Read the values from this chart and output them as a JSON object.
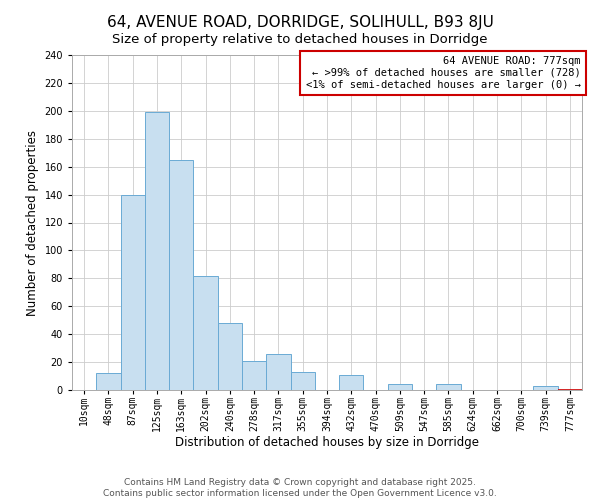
{
  "title": "64, AVENUE ROAD, DORRIDGE, SOLIHULL, B93 8JU",
  "subtitle": "Size of property relative to detached houses in Dorridge",
  "xlabel": "Distribution of detached houses by size in Dorridge",
  "ylabel": "Number of detached properties",
  "bin_labels": [
    "10sqm",
    "48sqm",
    "87sqm",
    "125sqm",
    "163sqm",
    "202sqm",
    "240sqm",
    "278sqm",
    "317sqm",
    "355sqm",
    "394sqm",
    "432sqm",
    "470sqm",
    "509sqm",
    "547sqm",
    "585sqm",
    "624sqm",
    "662sqm",
    "700sqm",
    "739sqm",
    "777sqm"
  ],
  "bar_heights": [
    0,
    12,
    140,
    199,
    165,
    82,
    48,
    21,
    26,
    13,
    0,
    11,
    0,
    4,
    0,
    4,
    0,
    0,
    0,
    3,
    0
  ],
  "bar_color": "#c8dff0",
  "bar_edge_color": "#6aaad4",
  "last_bar_color": "#ffffff",
  "last_bar_edge_color": "#cc0000",
  "ylim": [
    0,
    240
  ],
  "yticks": [
    0,
    20,
    40,
    60,
    80,
    100,
    120,
    140,
    160,
    180,
    200,
    220,
    240
  ],
  "annotation_box_text_line1": "64 AVENUE ROAD: 777sqm",
  "annotation_box_text_line2": "← >99% of detached houses are smaller (728)",
  "annotation_box_text_line3": "<1% of semi-detached houses are larger (0) →",
  "annotation_box_color": "#ffffff",
  "annotation_box_edge_color": "#cc0000",
  "footer_line1": "Contains HM Land Registry data © Crown copyright and database right 2025.",
  "footer_line2": "Contains public sector information licensed under the Open Government Licence v3.0.",
  "background_color": "#ffffff",
  "grid_color": "#cccccc",
  "title_fontsize": 11,
  "subtitle_fontsize": 9.5,
  "axis_label_fontsize": 8.5,
  "tick_fontsize": 7,
  "footer_fontsize": 6.5,
  "annotation_fontsize": 7.5
}
